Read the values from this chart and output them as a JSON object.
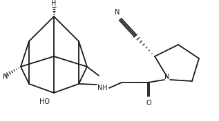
{
  "bg_color": "#ffffff",
  "line_color": "#1a1a1a",
  "text_color": "#1a1a1a",
  "bond_lw": 1.3,
  "dash_lw": 0.9,
  "figsize": [
    3.17,
    1.76
  ],
  "dpi": 100,
  "xlim": [
    0,
    317
  ],
  "ylim": [
    0,
    176
  ]
}
